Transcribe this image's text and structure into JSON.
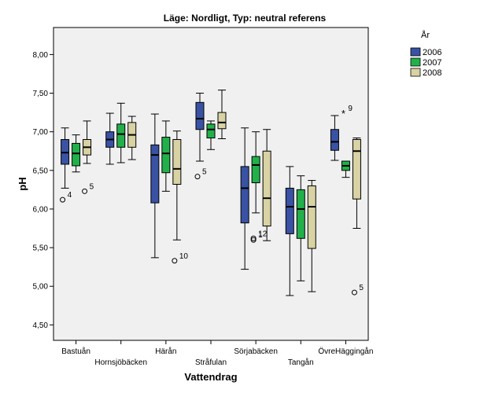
{
  "chart_data": {
    "type": "boxplot",
    "title": "Läge: Nordligt, Typ: neutral referens",
    "xlabel": "Vattendrag",
    "ylabel": "pH",
    "ylim": [
      4.3,
      8.35
    ],
    "yticks": [
      "4,50",
      "5,00",
      "5,50",
      "6,00",
      "6,50",
      "7,00",
      "7,50",
      "8,00"
    ],
    "ytick_values": [
      4.5,
      5.0,
      5.5,
      6.0,
      6.5,
      7.0,
      7.5,
      8.0
    ],
    "grid": false,
    "legend": {
      "title": "År",
      "position": "right",
      "entries": [
        {
          "name": "2006",
          "color": "#3952a4"
        },
        {
          "name": "2007",
          "color": "#22b04a"
        },
        {
          "name": "2008",
          "color": "#d8d2a4"
        }
      ]
    },
    "categories": [
      "Bastuån",
      "Hornsjöbäcken",
      "Härån",
      "Stråfulan",
      "Sörjabäcken",
      "Tangån",
      "ÖvreHäggingån"
    ],
    "series": [
      {
        "name": "2006",
        "boxes": [
          {
            "min": 6.27,
            "q1": 6.58,
            "median": 6.73,
            "q3": 6.9,
            "max": 7.05
          },
          {
            "min": 6.58,
            "q1": 6.8,
            "median": 6.9,
            "q3": 7.0,
            "max": 7.24
          },
          {
            "min": 5.37,
            "q1": 6.08,
            "median": 6.7,
            "q3": 6.83,
            "max": 7.23
          },
          {
            "min": 6.62,
            "q1": 7.03,
            "median": 7.17,
            "q3": 7.38,
            "max": 7.5
          },
          {
            "min": 5.22,
            "q1": 5.82,
            "median": 6.27,
            "q3": 6.55,
            "max": 7.05
          },
          {
            "min": 4.88,
            "q1": 5.68,
            "median": 6.03,
            "q3": 6.27,
            "max": 6.55
          },
          {
            "min": 6.63,
            "q1": 6.76,
            "median": 6.87,
            "q3": 7.03,
            "max": 7.21
          }
        ]
      },
      {
        "name": "2007",
        "boxes": [
          {
            "min": 6.48,
            "q1": 6.56,
            "median": 6.72,
            "q3": 6.85,
            "max": 6.96
          },
          {
            "min": 6.6,
            "q1": 6.8,
            "median": 6.97,
            "q3": 7.1,
            "max": 7.37
          },
          {
            "min": 6.23,
            "q1": 6.47,
            "median": 6.72,
            "q3": 6.93,
            "max": 7.14
          },
          {
            "min": 6.77,
            "q1": 6.92,
            "median": 7.03,
            "q3": 7.1,
            "max": 7.14
          },
          {
            "min": 5.95,
            "q1": 6.34,
            "median": 6.57,
            "q3": 6.68,
            "max": 7.0
          },
          {
            "min": 5.07,
            "q1": 5.62,
            "median": 6.0,
            "q3": 6.25,
            "max": 6.43
          },
          {
            "min": 6.41,
            "q1": 6.5,
            "median": 6.56,
            "q3": 6.62,
            "max": 6.62
          }
        ]
      },
      {
        "name": "2008",
        "boxes": [
          {
            "min": 6.59,
            "q1": 6.7,
            "median": 6.8,
            "q3": 6.9,
            "max": 7.14
          },
          {
            "min": 6.64,
            "q1": 6.8,
            "median": 6.96,
            "q3": 7.12,
            "max": 7.2
          },
          {
            "min": 5.6,
            "q1": 6.32,
            "median": 6.52,
            "q3": 6.9,
            "max": 7.01
          },
          {
            "min": 6.91,
            "q1": 7.04,
            "median": 7.12,
            "q3": 7.25,
            "max": 7.54
          },
          {
            "min": 5.59,
            "q1": 5.78,
            "median": 6.14,
            "q3": 6.75,
            "max": 7.03
          },
          {
            "min": 4.93,
            "q1": 5.49,
            "median": 6.03,
            "q3": 6.3,
            "max": 6.37
          },
          {
            "min": 5.75,
            "q1": 6.13,
            "median": 6.75,
            "q3": 6.9,
            "max": 6.92
          }
        ]
      }
    ],
    "outliers": [
      {
        "category": "Bastuån",
        "series": "2006",
        "value": 6.12,
        "label": "4",
        "marker": "circle"
      },
      {
        "category": "Bastuån",
        "series": "2008",
        "value": 6.23,
        "label": "5",
        "marker": "circle"
      },
      {
        "category": "Härån",
        "series": "2008",
        "value": 5.33,
        "label": "10",
        "marker": "circle"
      },
      {
        "category": "Stråfulan",
        "series": "2006",
        "value": 6.42,
        "label": "5",
        "marker": "circle"
      },
      {
        "category": "Sörjabäcken",
        "series": "2007",
        "value": 5.6,
        "label": "1",
        "marker": "circle"
      },
      {
        "category": "Sörjabäcken",
        "series": "2007",
        "value": 5.62,
        "label": "12",
        "marker": "circle"
      },
      {
        "category": "ÖvreHäggingån",
        "series": "2007",
        "value": 7.24,
        "label": "9",
        "marker": "star"
      },
      {
        "category": "ÖvreHäggingån",
        "series": "2008",
        "value": 4.92,
        "label": "5",
        "marker": "circle"
      }
    ]
  }
}
